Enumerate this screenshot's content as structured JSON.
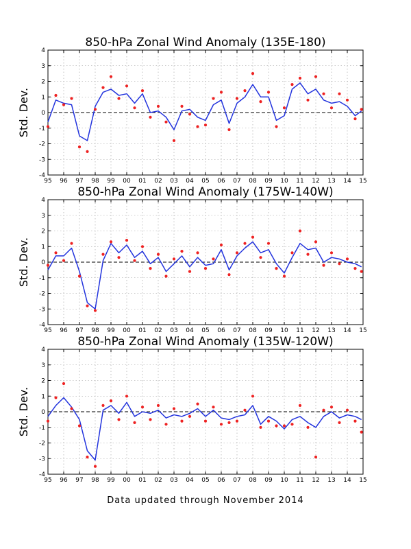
{
  "figure": {
    "footer": "Data updated through November 2014",
    "ylabel": "Std. Dev.",
    "colors": {
      "line": "#2233dd",
      "dots": "#ee2222",
      "grid": "#999999",
      "zero": "#000000"
    }
  },
  "chart_data": [
    {
      "type": "line",
      "title": "850-hPa Zonal Wind Anomaly (135E-180)",
      "ylabel": "Std. Dev.",
      "xlabel": "",
      "xlim": [
        1995,
        2015
      ],
      "ylim": [
        -4,
        4
      ],
      "x_tick_labels": [
        "95",
        "96",
        "97",
        "98",
        "99",
        "00",
        "01",
        "02",
        "03",
        "04",
        "05",
        "06",
        "07",
        "08",
        "09",
        "10",
        "11",
        "12",
        "13",
        "14",
        "15"
      ],
      "y_tick_labels": [
        "-4",
        "-3",
        "-2",
        "-1",
        "0",
        "1",
        "2",
        "3",
        "4"
      ],
      "grid": true,
      "x": [
        1995.0,
        1995.5,
        1996.0,
        1996.5,
        1997.0,
        1997.5,
        1998.0,
        1998.5,
        1999.0,
        1999.5,
        2000.0,
        2000.5,
        2001.0,
        2001.5,
        2002.0,
        2002.5,
        2003.0,
        2003.5,
        2004.0,
        2004.5,
        2005.0,
        2005.5,
        2006.0,
        2006.5,
        2007.0,
        2007.5,
        2008.0,
        2008.5,
        2009.0,
        2009.5,
        2010.0,
        2010.5,
        2011.0,
        2011.5,
        2012.0,
        2012.5,
        2013.0,
        2013.5,
        2014.0,
        2014.5,
        2014.9
      ],
      "series": [
        {
          "style": "line",
          "values": [
            -0.6,
            0.8,
            0.6,
            0.5,
            -1.5,
            -1.8,
            0.4,
            1.3,
            1.5,
            1.1,
            1.2,
            0.6,
            1.2,
            0.0,
            0.1,
            -0.3,
            -1.1,
            0.1,
            0.2,
            -0.3,
            -0.5,
            0.5,
            0.8,
            -0.7,
            0.6,
            1.0,
            1.8,
            1.0,
            1.0,
            -0.5,
            -0.2,
            1.5,
            1.9,
            1.2,
            1.5,
            0.8,
            0.6,
            0.7,
            0.4,
            -0.2,
            0.1
          ]
        },
        {
          "style": "points",
          "values": [
            -0.9,
            1.1,
            0.5,
            0.9,
            -2.2,
            -2.5,
            0.2,
            1.6,
            2.3,
            0.9,
            1.7,
            0.3,
            1.4,
            -0.3,
            0.4,
            -0.6,
            -1.8,
            0.4,
            -0.1,
            -0.9,
            -0.8,
            0.9,
            1.3,
            -1.1,
            0.9,
            1.4,
            2.5,
            0.7,
            1.3,
            -0.9,
            0.3,
            1.8,
            2.2,
            0.8,
            2.3,
            1.2,
            0.3,
            1.2,
            0.8,
            -0.4,
            0.2
          ]
        }
      ]
    },
    {
      "type": "line",
      "title": "850-hPa Zonal Wind Anomaly (175W-140W)",
      "ylabel": "Std. Dev.",
      "xlabel": "",
      "xlim": [
        1995,
        2015
      ],
      "ylim": [
        -4,
        4
      ],
      "x_tick_labels": [
        "95",
        "96",
        "97",
        "98",
        "99",
        "00",
        "01",
        "02",
        "03",
        "04",
        "05",
        "06",
        "07",
        "08",
        "09",
        "10",
        "11",
        "12",
        "13",
        "14",
        "15"
      ],
      "y_tick_labels": [
        "-4",
        "-3",
        "-2",
        "-1",
        "0",
        "1",
        "2",
        "3",
        "4"
      ],
      "grid": true,
      "x": [
        1995.0,
        1995.5,
        1996.0,
        1996.5,
        1997.0,
        1997.5,
        1998.0,
        1998.5,
        1999.0,
        1999.5,
        2000.0,
        2000.5,
        2001.0,
        2001.5,
        2002.0,
        2002.5,
        2003.0,
        2003.5,
        2004.0,
        2004.5,
        2005.0,
        2005.5,
        2006.0,
        2006.5,
        2007.0,
        2007.5,
        2008.0,
        2008.5,
        2009.0,
        2009.5,
        2010.0,
        2010.5,
        2011.0,
        2011.5,
        2012.0,
        2012.5,
        2013.0,
        2013.5,
        2014.0,
        2014.5,
        2014.9
      ],
      "series": [
        {
          "style": "line",
          "values": [
            -0.5,
            0.4,
            0.4,
            0.9,
            -0.6,
            -2.6,
            -3.0,
            0.1,
            1.2,
            0.6,
            1.1,
            0.3,
            0.7,
            -0.1,
            0.3,
            -0.6,
            -0.1,
            0.4,
            -0.3,
            0.3,
            -0.2,
            -0.1,
            0.8,
            -0.5,
            0.4,
            0.9,
            1.3,
            0.6,
            0.8,
            -0.1,
            -0.7,
            0.3,
            1.2,
            0.8,
            0.9,
            0.0,
            0.3,
            0.2,
            0.0,
            -0.1,
            -0.3
          ]
        },
        {
          "style": "points",
          "values": [
            -0.2,
            0.6,
            0.1,
            1.2,
            -0.9,
            -2.8,
            -3.1,
            0.5,
            1.3,
            0.3,
            1.4,
            0.1,
            1.0,
            -0.4,
            0.5,
            -0.9,
            0.2,
            0.7,
            -0.6,
            0.6,
            -0.4,
            0.2,
            1.1,
            -0.8,
            0.6,
            1.2,
            1.6,
            0.3,
            1.2,
            -0.4,
            -0.9,
            0.6,
            2.0,
            0.5,
            1.3,
            -0.2,
            0.6,
            -0.1,
            0.2,
            -0.4,
            -0.6
          ]
        }
      ]
    },
    {
      "type": "line",
      "title": "850-hPa Zonal Wind Anomaly (135W-120W)",
      "ylabel": "Std. Dev.",
      "xlabel": "",
      "xlim": [
        1995,
        2015
      ],
      "ylim": [
        -4,
        4
      ],
      "x_tick_labels": [
        "95",
        "96",
        "97",
        "98",
        "99",
        "00",
        "01",
        "02",
        "03",
        "04",
        "05",
        "06",
        "07",
        "08",
        "09",
        "10",
        "11",
        "12",
        "13",
        "14",
        "15"
      ],
      "y_tick_labels": [
        "-4",
        "-3",
        "-2",
        "-1",
        "0",
        "1",
        "2",
        "3",
        "4"
      ],
      "grid": true,
      "x": [
        1995.0,
        1995.5,
        1996.0,
        1996.5,
        1997.0,
        1997.5,
        1998.0,
        1998.5,
        1999.0,
        1999.5,
        2000.0,
        2000.5,
        2001.0,
        2001.5,
        2002.0,
        2002.5,
        2003.0,
        2003.5,
        2004.0,
        2004.5,
        2005.0,
        2005.5,
        2006.0,
        2006.5,
        2007.0,
        2007.5,
        2008.0,
        2008.5,
        2009.0,
        2009.5,
        2010.0,
        2010.5,
        2011.0,
        2011.5,
        2012.0,
        2012.5,
        2013.0,
        2013.5,
        2014.0,
        2014.5,
        2014.9
      ],
      "series": [
        {
          "style": "line",
          "values": [
            -0.3,
            0.4,
            0.9,
            0.3,
            -0.5,
            -2.5,
            -3.1,
            0.1,
            0.4,
            -0.1,
            0.6,
            -0.3,
            0.0,
            -0.1,
            0.1,
            -0.4,
            -0.2,
            -0.3,
            -0.1,
            0.2,
            -0.3,
            0.1,
            -0.4,
            -0.5,
            -0.3,
            -0.2,
            0.4,
            -0.8,
            -0.3,
            -0.6,
            -1.1,
            -0.5,
            -0.3,
            -0.7,
            -1.0,
            -0.3,
            0.0,
            -0.4,
            -0.2,
            -0.3,
            -0.5
          ]
        },
        {
          "style": "points",
          "values": [
            -0.6,
            0.9,
            1.8,
            0.2,
            -0.9,
            -2.9,
            -3.5,
            0.4,
            0.7,
            -0.5,
            1.0,
            -0.7,
            0.3,
            -0.5,
            0.4,
            -0.8,
            0.2,
            -0.6,
            -0.3,
            0.5,
            -0.6,
            0.3,
            -0.8,
            -0.7,
            -0.6,
            0.1,
            1.0,
            -1.0,
            -0.6,
            -0.9,
            -0.9,
            -0.8,
            0.4,
            -1.0,
            -2.9,
            0.1,
            0.3,
            -0.7,
            0.1,
            -0.6,
            -1.3
          ]
        }
      ]
    }
  ]
}
